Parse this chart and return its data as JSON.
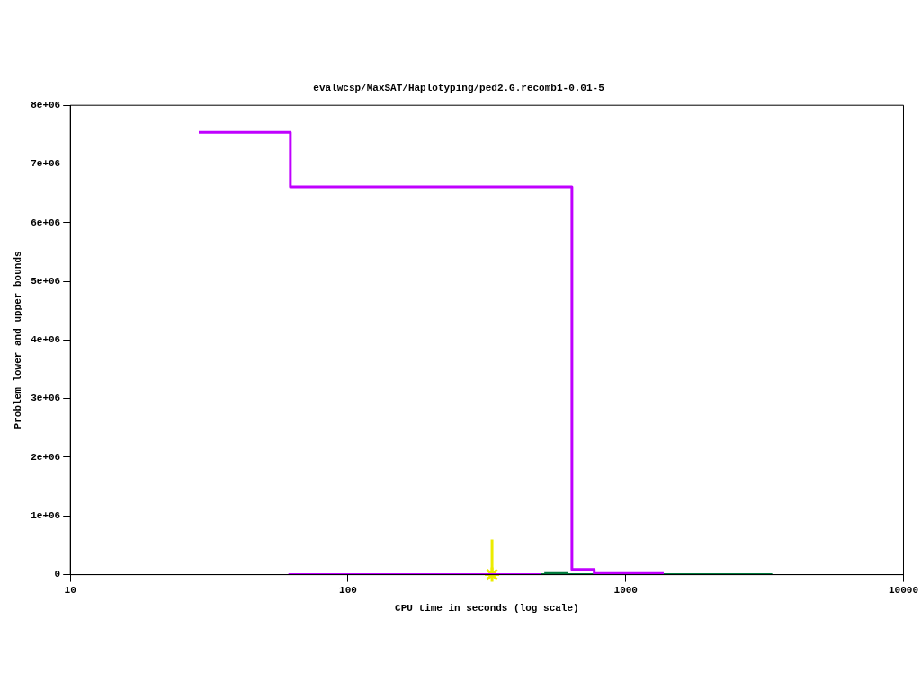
{
  "chart_data": {
    "type": "step",
    "title": "evalwcsp/MaxSAT/Haplotyping/ped2.G.recomb1-0.01-5",
    "xlabel": "CPU time in seconds (log scale)",
    "ylabel": "Problem lower and upper bounds",
    "log": "x",
    "grid": false,
    "legend": false,
    "xlim": [
      10,
      10000
    ],
    "xticks": [
      10,
      100,
      1000,
      10000
    ],
    "ylim": [
      0,
      8000000
    ],
    "yticks": [
      0,
      {
        "value": 1000000,
        "label": "1e+06"
      },
      {
        "value": 2000000,
        "label": "2e+06"
      },
      {
        "value": 3000000,
        "label": "3e+06"
      },
      {
        "value": 4000000,
        "label": "4e+06"
      },
      {
        "value": 5000000,
        "label": "5e+06"
      },
      {
        "value": 6000000,
        "label": "6e+06"
      },
      {
        "value": 7000000,
        "label": "7e+06"
      },
      {
        "value": 8000000,
        "label": "8e+06"
      }
    ],
    "series": [
      {
        "type": "step",
        "color": "#c000ff",
        "x": [
          29,
          62,
          640,
          770,
          1370
        ],
        "values": [
          7540000,
          6610000,
          90000,
          20000,
          20000
        ]
      },
      {
        "type": "step",
        "color": "#c000ff",
        "x": [
          61,
          494
        ],
        "values": [
          0,
          0
        ]
      },
      {
        "type": "line",
        "color": "#ecec00",
        "x": [
          330,
          330
        ],
        "values": [
          0,
          600000
        ]
      },
      {
        "type": "scatter",
        "color": "#ecec00",
        "marker": "cross",
        "x": [
          330
        ],
        "values": [
          0
        ]
      },
      {
        "type": "step",
        "color": "#007a3d",
        "x": [
          494,
          3370
        ],
        "values": [
          0,
          0
        ]
      },
      {
        "type": "step",
        "color": "#007a3d",
        "x": [
          509,
          619
        ],
        "values": [
          20000,
          20000
        ]
      }
    ]
  }
}
